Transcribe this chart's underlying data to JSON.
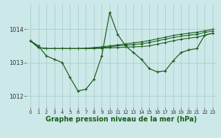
{
  "background_color": "#cce8e8",
  "grid_color": "#aacccc",
  "line_color": "#1a5c1a",
  "title": "Graphe pression niveau de la mer (hPa)",
  "ylim": [
    1011.65,
    1014.75
  ],
  "xlim": [
    -0.5,
    23.5
  ],
  "yticks": [
    1012,
    1013,
    1014
  ],
  "xticks": [
    0,
    1,
    2,
    3,
    4,
    5,
    6,
    7,
    8,
    9,
    10,
    11,
    12,
    13,
    14,
    15,
    16,
    17,
    18,
    19,
    20,
    21,
    22,
    23
  ],
  "series_main": [
    1013.65,
    1013.5,
    1013.2,
    1013.1,
    1013.0,
    1012.55,
    1012.15,
    1012.2,
    1012.5,
    1013.2,
    1014.5,
    1013.85,
    1013.5,
    1013.3,
    1013.1,
    1012.82,
    1012.72,
    1012.75,
    1013.05,
    1013.3,
    1013.38,
    1013.42,
    1013.82,
    1013.88
  ],
  "series_flat1": [
    1013.65,
    1013.45,
    1013.42,
    1013.42,
    1013.42,
    1013.42,
    1013.42,
    1013.42,
    1013.42,
    1013.43,
    1013.44,
    1013.45,
    1013.46,
    1013.47,
    1013.48,
    1013.5,
    1013.55,
    1013.6,
    1013.65,
    1013.7,
    1013.73,
    1013.76,
    1013.82,
    1013.88
  ],
  "series_flat2": [
    1013.65,
    1013.45,
    1013.42,
    1013.42,
    1013.42,
    1013.42,
    1013.42,
    1013.42,
    1013.43,
    1013.45,
    1013.47,
    1013.5,
    1013.52,
    1013.54,
    1013.56,
    1013.6,
    1013.65,
    1013.7,
    1013.75,
    1013.79,
    1013.82,
    1013.85,
    1013.9,
    1013.95
  ],
  "series_flat3": [
    1013.65,
    1013.45,
    1013.42,
    1013.42,
    1013.42,
    1013.42,
    1013.42,
    1013.43,
    1013.45,
    1013.47,
    1013.5,
    1013.53,
    1013.56,
    1013.59,
    1013.62,
    1013.66,
    1013.71,
    1013.76,
    1013.81,
    1013.85,
    1013.88,
    1013.91,
    1013.95,
    1014.0
  ]
}
